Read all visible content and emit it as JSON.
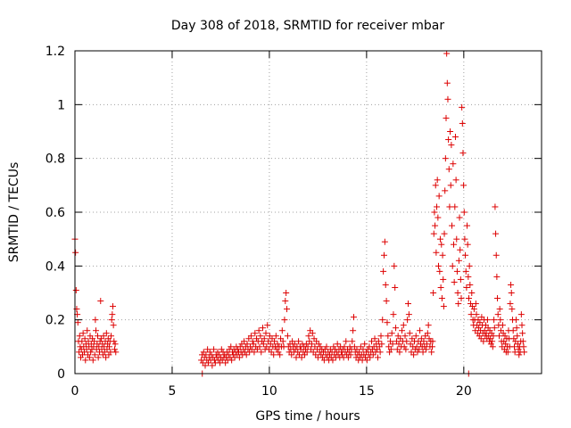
{
  "chart_data": {
    "type": "scatter",
    "title": "Day 308 of 2018, SRMTID for receiver mbar",
    "xlabel": "GPS time / hours",
    "ylabel": "SRMTID / TECUs",
    "xlim": [
      0,
      24
    ],
    "ylim": [
      0,
      1.2
    ],
    "xticks": [
      0,
      5,
      10,
      15,
      20
    ],
    "yticks": [
      0,
      0.2,
      0.4,
      0.6,
      0.8,
      1,
      1.2
    ],
    "xtick_labels": [
      "0",
      "5",
      "10",
      "15",
      "20"
    ],
    "ytick_labels": [
      "0",
      "0.2",
      "0.4",
      "0.6",
      "0.8",
      "1",
      "1.2"
    ],
    "grid": true,
    "marker": "+",
    "colors": {
      "series": "#dd0000",
      "grid": "#a0a0a0",
      "axis": "#000000"
    },
    "series": [
      {
        "name": "mbar",
        "segments": [
          {
            "x_start": 0.0,
            "x_end": 2.1,
            "x_step": 0.03,
            "y": [
              0.5,
              0.45,
              0.31,
              0.24,
              0.22,
              0.19,
              0.12,
              0.08,
              0.14,
              0.1,
              0.06,
              0.09,
              0.12,
              0.07,
              0.15,
              0.1,
              0.08,
              0.13,
              0.05,
              0.11,
              0.09,
              0.16,
              0.07,
              0.12,
              0.1,
              0.06,
              0.14,
              0.08,
              0.11,
              0.09,
              0.13,
              0.05,
              0.1,
              0.12,
              0.07,
              0.2,
              0.16,
              0.09,
              0.11,
              0.14,
              0.06,
              0.1,
              0.08,
              0.12,
              0.27,
              0.13,
              0.09,
              0.11,
              0.07,
              0.14,
              0.1,
              0.08,
              0.12,
              0.06,
              0.15,
              0.09,
              0.11,
              0.13,
              0.07,
              0.1,
              0.12,
              0.08,
              0.14,
              0.2,
              0.22,
              0.25,
              0.18,
              0.12,
              0.09,
              0.11,
              0.08
            ]
          },
          {
            "x_start": 6.5,
            "x_end": 19.0,
            "x_step": 0.04,
            "y": [
              0.05,
              0.07,
              0.04,
              0.08,
              0.06,
              0.03,
              0.07,
              0.05,
              0.09,
              0.04,
              0.06,
              0.08,
              0.05,
              0.07,
              0.03,
              0.06,
              0.09,
              0.05,
              0.04,
              0.07,
              0.06,
              0.08,
              0.05,
              0.07,
              0.04,
              0.06,
              0.09,
              0.05,
              0.08,
              0.06,
              0.07,
              0.04,
              0.06,
              0.08,
              0.05,
              0.07,
              0.09,
              0.06,
              0.1,
              0.05,
              0.08,
              0.07,
              0.09,
              0.06,
              0.08,
              0.1,
              0.07,
              0.09,
              0.08,
              0.06,
              0.1,
              0.08,
              0.11,
              0.07,
              0.09,
              0.12,
              0.08,
              0.1,
              0.07,
              0.11,
              0.09,
              0.13,
              0.08,
              0.1,
              0.14,
              0.09,
              0.12,
              0.11,
              0.08,
              0.15,
              0.1,
              0.13,
              0.09,
              0.12,
              0.16,
              0.1,
              0.14,
              0.08,
              0.12,
              0.17,
              0.11,
              0.13,
              0.09,
              0.15,
              0.1,
              0.18,
              0.12,
              0.09,
              0.14,
              0.11,
              0.08,
              0.13,
              0.1,
              0.07,
              0.12,
              0.1,
              0.14,
              0.09,
              0.11,
              0.08,
              0.1,
              0.07,
              0.13,
              0.1,
              0.16,
              0.12,
              0.1,
              0.2,
              0.27,
              0.3,
              0.24,
              0.14,
              0.1,
              0.08,
              0.11,
              0.09,
              0.07,
              0.12,
              0.1,
              0.08,
              0.11,
              0.09,
              0.06,
              0.1,
              0.08,
              0.12,
              0.07,
              0.1,
              0.09,
              0.06,
              0.11,
              0.08,
              0.1,
              0.07,
              0.09,
              0.11,
              0.08,
              0.1,
              0.14,
              0.12,
              0.16,
              0.09,
              0.11,
              0.15,
              0.08,
              0.13,
              0.1,
              0.07,
              0.12,
              0.09,
              0.06,
              0.11,
              0.08,
              0.1,
              0.07,
              0.09,
              0.06,
              0.08,
              0.05,
              0.09,
              0.07,
              0.1,
              0.06,
              0.08,
              0.05,
              0.07,
              0.09,
              0.06,
              0.08,
              0.05,
              0.1,
              0.07,
              0.09,
              0.06,
              0.08,
              0.11,
              0.07,
              0.09,
              0.06,
              0.1,
              0.08,
              0.07,
              0.09,
              0.06,
              0.1,
              0.08,
              0.12,
              0.07,
              0.09,
              0.06,
              0.08,
              0.1,
              0.07,
              0.09,
              0.12,
              0.16,
              0.21,
              0.1,
              0.08,
              0.06,
              0.09,
              0.07,
              0.05,
              0.08,
              0.06,
              0.1,
              0.07,
              0.05,
              0.09,
              0.07,
              0.11,
              0.06,
              0.08,
              0.05,
              0.09,
              0.07,
              0.1,
              0.06,
              0.08,
              0.12,
              0.09,
              0.07,
              0.1,
              0.13,
              0.08,
              0.11,
              0.09,
              0.06,
              0.12,
              0.1,
              0.08,
              0.14,
              0.11,
              0.2,
              0.38,
              0.44,
              0.49,
              0.33,
              0.27,
              0.19,
              0.14,
              0.1,
              0.08,
              0.12,
              0.09,
              0.15,
              0.11,
              0.22,
              0.4,
              0.32,
              0.17,
              0.12,
              0.09,
              0.14,
              0.11,
              0.08,
              0.13,
              0.1,
              0.16,
              0.12,
              0.18,
              0.1,
              0.14,
              0.09,
              0.12,
              0.2,
              0.26,
              0.22,
              0.15,
              0.11,
              0.08,
              0.13,
              0.1,
              0.07,
              0.12,
              0.09,
              0.14,
              0.1,
              0.08,
              0.12,
              0.09,
              0.16,
              0.11,
              0.13,
              0.1,
              0.08,
              0.12,
              0.1,
              0.14,
              0.09,
              0.11,
              0.15,
              0.18,
              0.13,
              0.1,
              0.12,
              0.08,
              0.1
            ]
          },
          {
            "x_start": 18.4,
            "x_end": 22.9,
            "x_step": 0.03,
            "y": [
              0.12,
              0.3,
              0.52,
              0.6,
              0.55,
              0.7,
              0.45,
              0.62,
              0.72,
              0.58,
              0.4,
              0.66,
              0.38,
              0.5,
              0.32,
              0.48,
              0.28,
              0.44,
              0.35,
              0.25,
              0.52,
              0.68,
              0.8,
              0.95,
              1.19,
              1.08,
              1.02,
              0.87,
              0.76,
              0.62,
              0.9,
              0.7,
              0.85,
              0.55,
              0.4,
              0.78,
              0.48,
              0.34,
              0.62,
              0.88,
              0.72,
              0.5,
              0.38,
              0.3,
              0.26,
              0.42,
              0.58,
              0.46,
              0.35,
              0.28,
              0.99,
              0.93,
              0.82,
              0.7,
              0.6,
              0.5,
              0.44,
              0.38,
              0.32,
              0.55,
              0.48,
              0.36,
              0.28,
              0.4,
              0.33,
              0.26,
              0.22,
              0.3,
              0.25,
              0.2,
              0.18,
              0.24,
              0.2,
              0.16,
              0.26,
              0.22,
              0.18,
              0.15,
              0.2,
              0.17,
              0.14,
              0.19,
              0.16,
              0.13,
              0.21,
              0.18,
              0.15,
              0.12,
              0.2,
              0.16,
              0.14,
              0.18,
              0.15,
              0.13,
              0.2,
              0.17,
              0.14,
              0.12,
              0.16,
              0.13,
              0.11,
              0.15,
              0.12,
              0.1,
              0.14,
              0.2,
              0.17,
              0.62,
              0.52,
              0.44,
              0.36,
              0.28,
              0.22,
              0.18,
              0.14,
              0.24,
              0.2,
              0.16,
              0.12,
              0.1,
              0.18,
              0.15,
              0.12,
              0.09,
              0.14,
              0.11,
              0.08,
              0.13,
              0.1,
              0.08,
              0.16,
              0.13,
              0.1,
              0.26,
              0.33,
              0.3,
              0.24,
              0.2,
              0.16,
              0.13,
              0.1,
              0.08,
              0.12,
              0.2,
              0.17,
              0.14,
              0.11,
              0.09,
              0.07,
              0.1,
              0.08,
              0.12,
              0.22,
              0.18,
              0.15,
              0.12,
              0.1,
              0.08
            ]
          },
          {
            "x_start": 6.55,
            "x_end": 20.25,
            "x_step": 13.7,
            "y": [
              0,
              0
            ]
          }
        ]
      }
    ]
  }
}
